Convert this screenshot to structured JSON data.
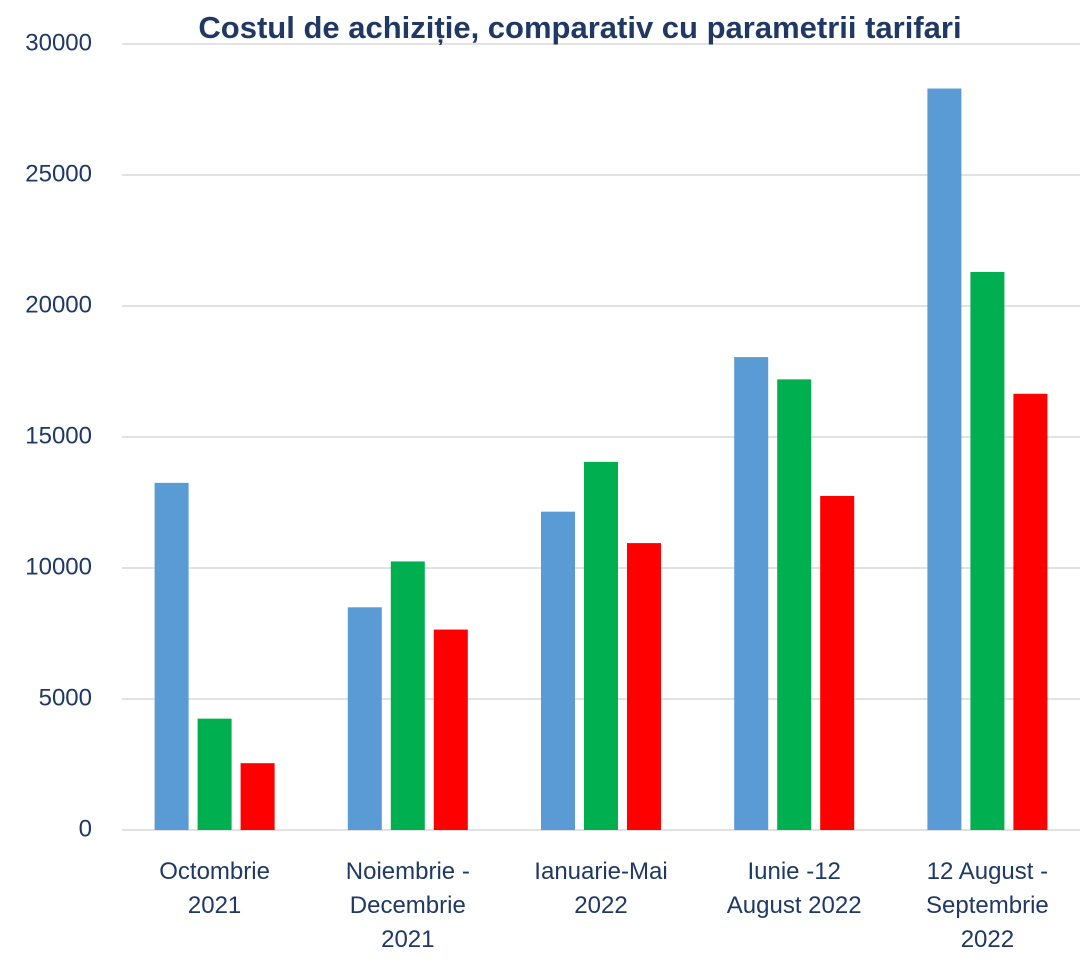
{
  "chart_data": {
    "type": "bar",
    "title": "Costul de achiziție, comparativ cu parametrii tarifari",
    "categories": [
      "Octombrie 2021",
      "Noiembrie - Decembrie 2021",
      "Ianuarie-Mai 2022",
      "Iunie -12 August 2022",
      "12 August - Septembrie 2022"
    ],
    "series": [
      {
        "color": "#5b9bd5",
        "values": [
          13250,
          8500,
          12150,
          18050,
          28300
        ]
      },
      {
        "color": "#00b050",
        "values": [
          4250,
          10250,
          14050,
          17200,
          21300
        ]
      },
      {
        "color": "#ff0000",
        "values": [
          2550,
          7650,
          10950,
          12750,
          16650
        ]
      }
    ],
    "ylim": [
      0,
      30000
    ],
    "yticks": [
      0,
      5000,
      10000,
      15000,
      20000,
      25000,
      30000
    ],
    "grid": true
  }
}
